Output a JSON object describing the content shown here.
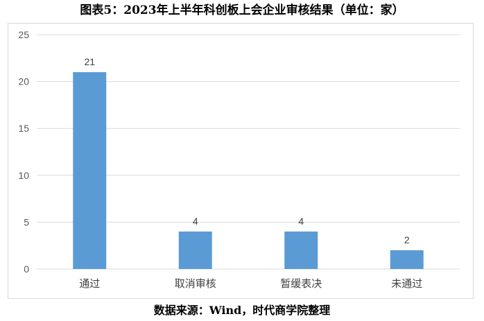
{
  "header": {
    "title": "图表5：2023年上半年科创板上会企业审核结果（单位：家）"
  },
  "footer": {
    "source": "数据来源：Wind，时代商学院整理"
  },
  "colors": {
    "bar": "#5b9bd5",
    "grid": "#d9d9d9"
  },
  "chart_data": {
    "type": "bar",
    "categories": [
      "通过",
      "取消审核",
      "暂缓表决",
      "未通过"
    ],
    "values": [
      21,
      4,
      4,
      2
    ],
    "data_labels": [
      "21",
      "4",
      "4",
      "2"
    ],
    "ylim": [
      0,
      25
    ],
    "yticks": [
      0,
      5,
      10,
      15,
      20,
      25
    ],
    "ytick_labels": [
      "0",
      "5",
      "10",
      "15",
      "20",
      "25"
    ],
    "grid": true,
    "legend": "none"
  }
}
